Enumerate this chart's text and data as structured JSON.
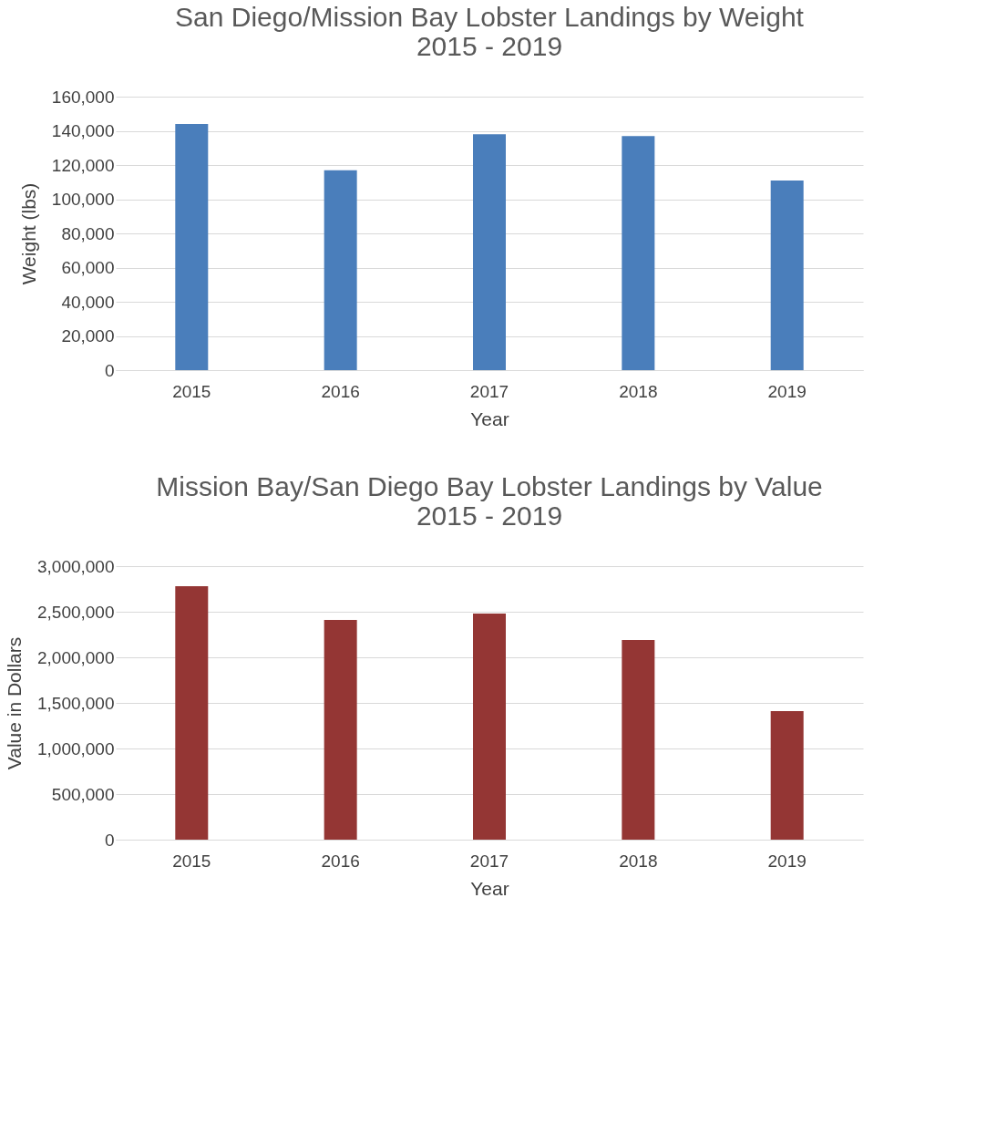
{
  "chart_data": [
    {
      "type": "bar",
      "title": [
        "San Diego/Mission Bay Lobster Landings by Weight",
        "2015 - 2019"
      ],
      "xlabel": "Year",
      "ylabel": "Weight (lbs)",
      "categories": [
        "2015",
        "2016",
        "2017",
        "2018",
        "2019"
      ],
      "values": [
        144000,
        117000,
        138000,
        137000,
        111000
      ],
      "color": "#4a7ebb",
      "ylim": [
        0,
        160000
      ],
      "yticks": [
        0,
        {
          "value": 20000,
          "label": "20,000"
        },
        {
          "value": 40000,
          "label": "40,000"
        },
        {
          "value": 60000,
          "label": "60,000"
        },
        {
          "value": 80000,
          "label": "80,000"
        },
        {
          "value": 100000,
          "label": "100,000"
        },
        {
          "value": 120000,
          "label": "120,000"
        },
        {
          "value": 140000,
          "label": "140,000"
        },
        {
          "value": 160000,
          "label": "160,000"
        }
      ],
      "grid": "y"
    },
    {
      "type": "bar",
      "title": [
        "Mission Bay/San Diego Bay Lobster Landings by Value",
        "2015 - 2019"
      ],
      "xlabel": "Year",
      "ylabel": "Value in Dollars",
      "categories": [
        "2015",
        "2016",
        "2017",
        "2018",
        "2019"
      ],
      "values": [
        2780000,
        2410000,
        2480000,
        2190000,
        1410000
      ],
      "color": "#943634",
      "ylim": [
        0,
        3000000
      ],
      "yticks": [
        0,
        {
          "value": 500000,
          "label": "500,000"
        },
        {
          "value": 1000000,
          "label": "1,000,000"
        },
        {
          "value": 1500000,
          "label": "1,500,000"
        },
        {
          "value": 2000000,
          "label": "2,000,000"
        },
        {
          "value": 2500000,
          "label": "2,500,000"
        },
        {
          "value": 3000000,
          "label": "3,000,000"
        }
      ],
      "grid": "y"
    }
  ]
}
